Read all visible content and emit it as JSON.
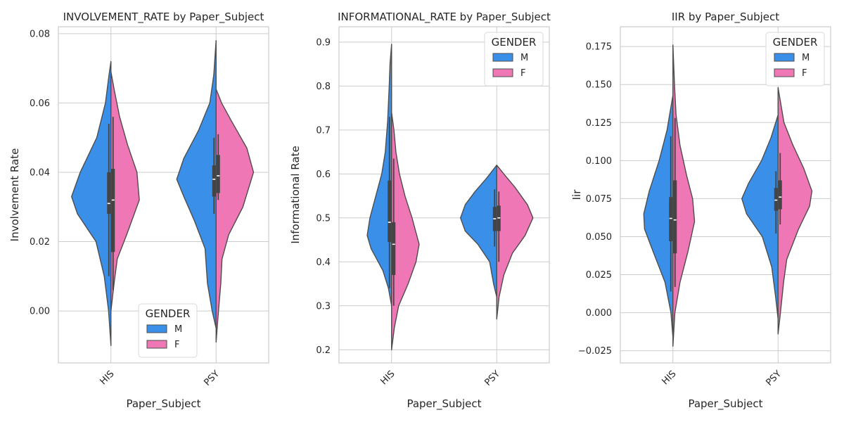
{
  "colors": {
    "M": "#3a8fe8",
    "F": "#ef77b5",
    "outline": "#4d4d4d",
    "grid": "#cccccc",
    "spine": "#cccccc"
  },
  "chart_data": [
    {
      "type": "violin",
      "title": "INVOLVEMENT_RATE by Paper_Subject",
      "xlabel": "Paper_Subject",
      "ylabel": "Involvement Rate",
      "categories": [
        "HIS",
        "PSY"
      ],
      "ylim": [
        -0.015,
        0.082
      ],
      "yticks": [
        0.0,
        0.02,
        0.04,
        0.06,
        0.08
      ],
      "ytick_labels": [
        "0.00",
        "0.02",
        "0.04",
        "0.06",
        "0.08"
      ],
      "grid": true,
      "legend": {
        "title": "GENDER",
        "entries": [
          "M",
          "F"
        ],
        "placement": "bottom-center"
      },
      "groups": [
        {
          "category": "HIS",
          "M": {
            "density": [
              [
                -0.01,
                0.0
              ],
              [
                0.0,
                0.06
              ],
              [
                0.01,
                0.17
              ],
              [
                0.02,
                0.38
              ],
              [
                0.028,
                0.85
              ],
              [
                0.033,
                1.0
              ],
              [
                0.04,
                0.78
              ],
              [
                0.05,
                0.36
              ],
              [
                0.06,
                0.14
              ],
              [
                0.068,
                0.05
              ],
              [
                0.072,
                0.0
              ]
            ],
            "box": {
              "q1": 0.028,
              "median": 0.031,
              "q3": 0.04,
              "whisker_low": 0.01,
              "whisker_high": 0.054
            }
          },
          "F": {
            "density": [
              [
                0.0,
                0.0
              ],
              [
                0.008,
                0.08
              ],
              [
                0.015,
                0.16
              ],
              [
                0.022,
                0.4
              ],
              [
                0.032,
                0.72
              ],
              [
                0.04,
                0.66
              ],
              [
                0.048,
                0.42
              ],
              [
                0.056,
                0.22
              ],
              [
                0.064,
                0.08
              ],
              [
                0.069,
                0.0
              ]
            ],
            "box": {
              "q1": 0.017,
              "median": 0.032,
              "q3": 0.041,
              "whisker_low": 0.006,
              "whisker_high": 0.056
            }
          }
        },
        {
          "category": "PSY",
          "M": {
            "density": [
              [
                -0.005,
                0.0
              ],
              [
                0.0,
                0.1
              ],
              [
                0.008,
                0.22
              ],
              [
                0.018,
                0.28
              ],
              [
                0.026,
                0.55
              ],
              [
                0.033,
                0.82
              ],
              [
                0.038,
                1.0
              ],
              [
                0.044,
                0.82
              ],
              [
                0.052,
                0.45
              ],
              [
                0.06,
                0.16
              ],
              [
                0.068,
                0.06
              ],
              [
                0.078,
                0.0
              ]
            ],
            "box": {
              "q1": 0.033,
              "median": 0.038,
              "q3": 0.042,
              "whisker_low": 0.028,
              "whisker_high": 0.05
            }
          },
          "F": {
            "density": [
              [
                -0.009,
                0.0
              ],
              [
                0.0,
                0.06
              ],
              [
                0.008,
                0.12
              ],
              [
                0.015,
                0.15
              ],
              [
                0.022,
                0.32
              ],
              [
                0.03,
                0.68
              ],
              [
                0.04,
                0.95
              ],
              [
                0.047,
                0.78
              ],
              [
                0.055,
                0.38
              ],
              [
                0.06,
                0.14
              ],
              [
                0.064,
                0.0
              ]
            ],
            "box": {
              "q1": 0.034,
              "median": 0.039,
              "q3": 0.045,
              "whisker_low": 0.032,
              "whisker_high": 0.051
            }
          }
        }
      ]
    },
    {
      "type": "violin",
      "title": "INFORMATIONAL_RATE by Paper_Subject",
      "xlabel": "Paper_Subject",
      "ylabel": "Informational Rate",
      "categories": [
        "HIS",
        "PSY"
      ],
      "ylim": [
        0.17,
        0.935
      ],
      "yticks": [
        0.2,
        0.3,
        0.4,
        0.5,
        0.6,
        0.7,
        0.8,
        0.9
      ],
      "ytick_labels": [
        "0.2",
        "0.3",
        "0.4",
        "0.5",
        "0.6",
        "0.7",
        "0.8",
        "0.9"
      ],
      "grid": true,
      "legend": {
        "title": "GENDER",
        "entries": [
          "M",
          "F"
        ],
        "placement": "top-right"
      },
      "groups": [
        {
          "category": "HIS",
          "M": {
            "density": [
              [
                0.3,
                0.0
              ],
              [
                0.34,
                0.08
              ],
              [
                0.38,
                0.22
              ],
              [
                0.43,
                0.52
              ],
              [
                0.46,
                0.62
              ],
              [
                0.5,
                0.55
              ],
              [
                0.55,
                0.4
              ],
              [
                0.6,
                0.25
              ],
              [
                0.65,
                0.16
              ],
              [
                0.72,
                0.1
              ],
              [
                0.8,
                0.06
              ],
              [
                0.85,
                0.04
              ],
              [
                0.895,
                0.0
              ]
            ],
            "box": {
              "q1": 0.445,
              "median": 0.49,
              "q3": 0.585,
              "whisker_low": 0.34,
              "whisker_high": 0.73
            }
          },
          "F": {
            "density": [
              [
                0.2,
                0.0
              ],
              [
                0.25,
                0.07
              ],
              [
                0.3,
                0.18
              ],
              [
                0.35,
                0.42
              ],
              [
                0.4,
                0.62
              ],
              [
                0.44,
                0.7
              ],
              [
                0.5,
                0.52
              ],
              [
                0.55,
                0.34
              ],
              [
                0.6,
                0.2
              ],
              [
                0.65,
                0.11
              ],
              [
                0.7,
                0.06
              ],
              [
                0.74,
                0.0
              ]
            ],
            "box": {
              "q1": 0.37,
              "median": 0.44,
              "q3": 0.49,
              "whisker_low": 0.3,
              "whisker_high": 0.635
            }
          }
        },
        {
          "category": "PSY",
          "M": {
            "density": [
              [
                0.32,
                0.0
              ],
              [
                0.35,
                0.08
              ],
              [
                0.4,
                0.18
              ],
              [
                0.44,
                0.48
              ],
              [
                0.47,
                0.8
              ],
              [
                0.5,
                0.92
              ],
              [
                0.53,
                0.8
              ],
              [
                0.56,
                0.55
              ],
              [
                0.59,
                0.26
              ],
              [
                0.62,
                0.0
              ]
            ],
            "box": {
              "q1": 0.47,
              "median": 0.498,
              "q3": 0.525,
              "whisker_low": 0.435,
              "whisker_high": 0.565
            }
          },
          "F": {
            "density": [
              [
                0.27,
                0.0
              ],
              [
                0.32,
                0.06
              ],
              [
                0.37,
                0.18
              ],
              [
                0.42,
                0.4
              ],
              [
                0.46,
                0.72
              ],
              [
                0.5,
                0.92
              ],
              [
                0.53,
                0.78
              ],
              [
                0.57,
                0.46
              ],
              [
                0.6,
                0.18
              ],
              [
                0.62,
                0.0
              ]
            ],
            "box": {
              "q1": 0.47,
              "median": 0.5,
              "q3": 0.528,
              "whisker_low": 0.4,
              "whisker_high": 0.56
            }
          }
        }
      ]
    },
    {
      "type": "violin",
      "title": "IIR by Paper_Subject",
      "xlabel": "Paper_Subject",
      "ylabel": "Iir",
      "categories": [
        "HIS",
        "PSY"
      ],
      "ylim": [
        -0.033,
        0.188
      ],
      "yticks": [
        -0.025,
        0.0,
        0.025,
        0.05,
        0.075,
        0.1,
        0.125,
        0.15,
        0.175
      ],
      "ytick_labels": [
        "−0.025",
        "0.000",
        "0.025",
        "0.050",
        "0.075",
        "0.100",
        "0.125",
        "0.150",
        "0.175"
      ],
      "grid": true,
      "legend": {
        "title": "GENDER",
        "entries": [
          "M",
          "F"
        ],
        "placement": "top-right"
      },
      "groups": [
        {
          "category": "HIS",
          "M": {
            "density": [
              [
                -0.016,
                0.0
              ],
              [
                0.0,
                0.05
              ],
              [
                0.02,
                0.2
              ],
              [
                0.04,
                0.5
              ],
              [
                0.055,
                0.72
              ],
              [
                0.065,
                0.74
              ],
              [
                0.08,
                0.6
              ],
              [
                0.1,
                0.35
              ],
              [
                0.12,
                0.15
              ],
              [
                0.143,
                0.0
              ]
            ],
            "box": {
              "q1": 0.047,
              "median": 0.062,
              "q3": 0.076,
              "whisker_low": 0.014,
              "whisker_high": 0.116
            }
          },
          "F": {
            "density": [
              [
                -0.022,
                0.0
              ],
              [
                0.0,
                0.05
              ],
              [
                0.02,
                0.18
              ],
              [
                0.04,
                0.38
              ],
              [
                0.06,
                0.55
              ],
              [
                0.075,
                0.5
              ],
              [
                0.09,
                0.35
              ],
              [
                0.11,
                0.18
              ],
              [
                0.13,
                0.08
              ],
              [
                0.15,
                0.04
              ],
              [
                0.176,
                0.0
              ]
            ],
            "box": {
              "q1": 0.039,
              "median": 0.061,
              "q3": 0.087,
              "whisker_low": 0.017,
              "whisker_high": 0.128
            }
          }
        },
        {
          "category": "PSY",
          "M": {
            "density": [
              [
                -0.004,
                0.0
              ],
              [
                0.01,
                0.06
              ],
              [
                0.03,
                0.16
              ],
              [
                0.05,
                0.4
              ],
              [
                0.065,
                0.8
              ],
              [
                0.075,
                0.92
              ],
              [
                0.085,
                0.75
              ],
              [
                0.1,
                0.42
              ],
              [
                0.115,
                0.18
              ],
              [
                0.13,
                0.0
              ]
            ],
            "box": {
              "q1": 0.067,
              "median": 0.074,
              "q3": 0.082,
              "whisker_low": 0.052,
              "whisker_high": 0.093
            }
          },
          "F": {
            "density": [
              [
                -0.014,
                0.0
              ],
              [
                0.0,
                0.06
              ],
              [
                0.02,
                0.14
              ],
              [
                0.035,
                0.22
              ],
              [
                0.055,
                0.52
              ],
              [
                0.07,
                0.8
              ],
              [
                0.08,
                0.86
              ],
              [
                0.095,
                0.65
              ],
              [
                0.11,
                0.38
              ],
              [
                0.125,
                0.15
              ],
              [
                0.148,
                0.0
              ]
            ],
            "box": {
              "q1": 0.068,
              "median": 0.076,
              "q3": 0.087,
              "whisker_low": 0.058,
              "whisker_high": 0.105
            }
          }
        }
      ]
    }
  ]
}
